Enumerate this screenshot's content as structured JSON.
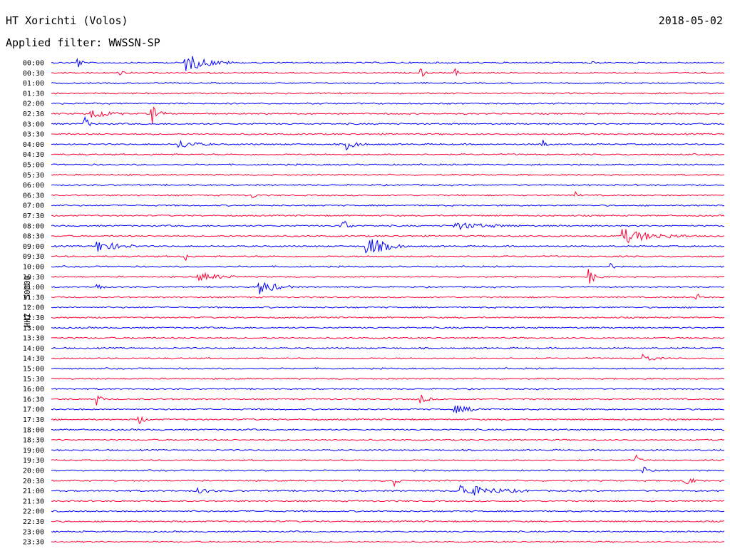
{
  "header": {
    "station": "HT Xorichti (Volos)",
    "date": "2018-05-02",
    "filter": "Applied filter: WWSSN-SP"
  },
  "y_axis_label": "HHZ - 50000",
  "colors": {
    "odd_hour": "#0000ff",
    "half_hour": "#ff0033"
  },
  "chart_data": {
    "type": "line",
    "title": "HT Xorichti (Volos)",
    "subtitle": "Applied filter: WWSSN-SP",
    "ylabel": "HHZ - 50000",
    "row_labels": [
      "00:00",
      "00:30",
      "01:00",
      "01:30",
      "02:00",
      "02:30",
      "03:00",
      "03:30",
      "04:00",
      "04:30",
      "05:00",
      "05:30",
      "06:00",
      "06:30",
      "07:00",
      "07:30",
      "08:00",
      "08:30",
      "09:00",
      "09:30",
      "10:00",
      "10:30",
      "11:00",
      "11:30",
      "12:00",
      "12:30",
      "13:00",
      "13:30",
      "14:00",
      "14:30",
      "15:00",
      "15:30",
      "16:00",
      "16:30",
      "17:00",
      "17:30",
      "18:00",
      "18:30",
      "19:00",
      "19:30",
      "20:00",
      "20:30",
      "21:00",
      "21:30",
      "22:00",
      "22:30",
      "23:00",
      "23:30"
    ],
    "row_colors": [
      "blue",
      "red"
    ],
    "events": [
      {
        "row": 0,
        "t": 0.04,
        "amp": 8,
        "dur": 0.01
      },
      {
        "row": 0,
        "t": 0.2,
        "amp": 12,
        "dur": 0.07
      },
      {
        "row": 0,
        "t": 0.8,
        "amp": 4,
        "dur": 0.01
      },
      {
        "row": 1,
        "t": 0.1,
        "amp": 3,
        "dur": 0.02
      },
      {
        "row": 1,
        "t": 0.55,
        "amp": 6,
        "dur": 0.01
      },
      {
        "row": 1,
        "t": 0.6,
        "amp": 5,
        "dur": 0.01
      },
      {
        "row": 5,
        "t": 0.06,
        "amp": 8,
        "dur": 0.05
      },
      {
        "row": 5,
        "t": 0.15,
        "amp": 14,
        "dur": 0.02
      },
      {
        "row": 6,
        "t": 0.05,
        "amp": 12,
        "dur": 0.01
      },
      {
        "row": 8,
        "t": 0.19,
        "amp": 6,
        "dur": 0.05
      },
      {
        "row": 8,
        "t": 0.44,
        "amp": 7,
        "dur": 0.03
      },
      {
        "row": 8,
        "t": 0.73,
        "amp": 10,
        "dur": 0.01
      },
      {
        "row": 13,
        "t": 0.3,
        "amp": 4,
        "dur": 0.01
      },
      {
        "row": 13,
        "t": 0.78,
        "amp": 4,
        "dur": 0.01
      },
      {
        "row": 16,
        "t": 0.43,
        "amp": 14,
        "dur": 0.02
      },
      {
        "row": 16,
        "t": 0.6,
        "amp": 5,
        "dur": 0.1
      },
      {
        "row": 17,
        "t": 0.85,
        "amp": 10,
        "dur": 0.1
      },
      {
        "row": 18,
        "t": 0.07,
        "amp": 8,
        "dur": 0.06
      },
      {
        "row": 18,
        "t": 0.47,
        "amp": 14,
        "dur": 0.06
      },
      {
        "row": 19,
        "t": 0.2,
        "amp": 6,
        "dur": 0.01
      },
      {
        "row": 20,
        "t": 0.83,
        "amp": 6,
        "dur": 0.01
      },
      {
        "row": 21,
        "t": 0.22,
        "amp": 6,
        "dur": 0.06
      },
      {
        "row": 21,
        "t": 0.8,
        "amp": 10,
        "dur": 0.02
      },
      {
        "row": 22,
        "t": 0.07,
        "amp": 6,
        "dur": 0.01
      },
      {
        "row": 22,
        "t": 0.31,
        "amp": 10,
        "dur": 0.05
      },
      {
        "row": 23,
        "t": 0.96,
        "amp": 5,
        "dur": 0.01
      },
      {
        "row": 29,
        "t": 0.88,
        "amp": 6,
        "dur": 0.03
      },
      {
        "row": 33,
        "t": 0.07,
        "amp": 8,
        "dur": 0.01
      },
      {
        "row": 33,
        "t": 0.55,
        "amp": 6,
        "dur": 0.02
      },
      {
        "row": 34,
        "t": 0.6,
        "amp": 5,
        "dur": 0.06
      },
      {
        "row": 35,
        "t": 0.13,
        "amp": 6,
        "dur": 0.02
      },
      {
        "row": 39,
        "t": 0.87,
        "amp": 6,
        "dur": 0.01
      },
      {
        "row": 40,
        "t": 0.88,
        "amp": 7,
        "dur": 0.02
      },
      {
        "row": 41,
        "t": 0.51,
        "amp": 8,
        "dur": 0.01
      },
      {
        "row": 41,
        "t": 0.94,
        "amp": 10,
        "dur": 0.02
      },
      {
        "row": 42,
        "t": 0.22,
        "amp": 4,
        "dur": 0.03
      },
      {
        "row": 42,
        "t": 0.61,
        "amp": 9,
        "dur": 0.1
      }
    ]
  }
}
